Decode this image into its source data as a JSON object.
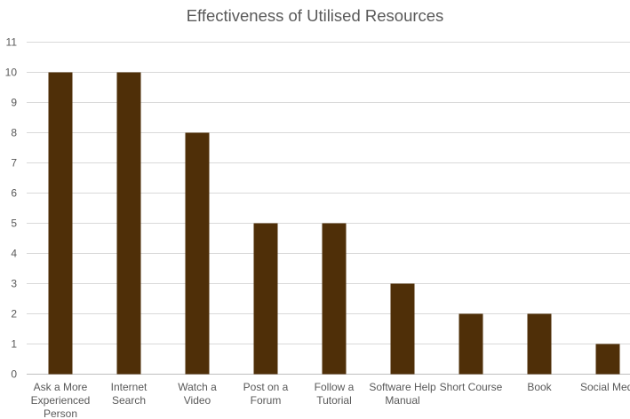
{
  "chart_data": {
    "type": "bar",
    "title": "Effectiveness of Utilised Resources",
    "categories": [
      [
        "Ask a More",
        "Experienced",
        "Person"
      ],
      [
        "Internet",
        "Search"
      ],
      [
        "Watch a",
        "Video"
      ],
      [
        "Post on a",
        "Forum"
      ],
      [
        "Follow a",
        "Tutorial"
      ],
      [
        "Software Help",
        "Manual"
      ],
      [
        "Short Course"
      ],
      [
        "Book"
      ],
      [
        "Social Medi"
      ]
    ],
    "values": [
      10,
      10,
      8,
      5,
      5,
      3,
      2,
      2,
      1
    ],
    "ylim": [
      0,
      11
    ],
    "yticks": [
      "0",
      "1",
      "2",
      "3",
      "4",
      "5",
      "6",
      "7",
      "8",
      "9",
      "10",
      "11"
    ],
    "xlabel": "",
    "ylabel": "",
    "grid": true,
    "bar_color": "#4f2f08",
    "grid_color": "#d9d9d9"
  }
}
